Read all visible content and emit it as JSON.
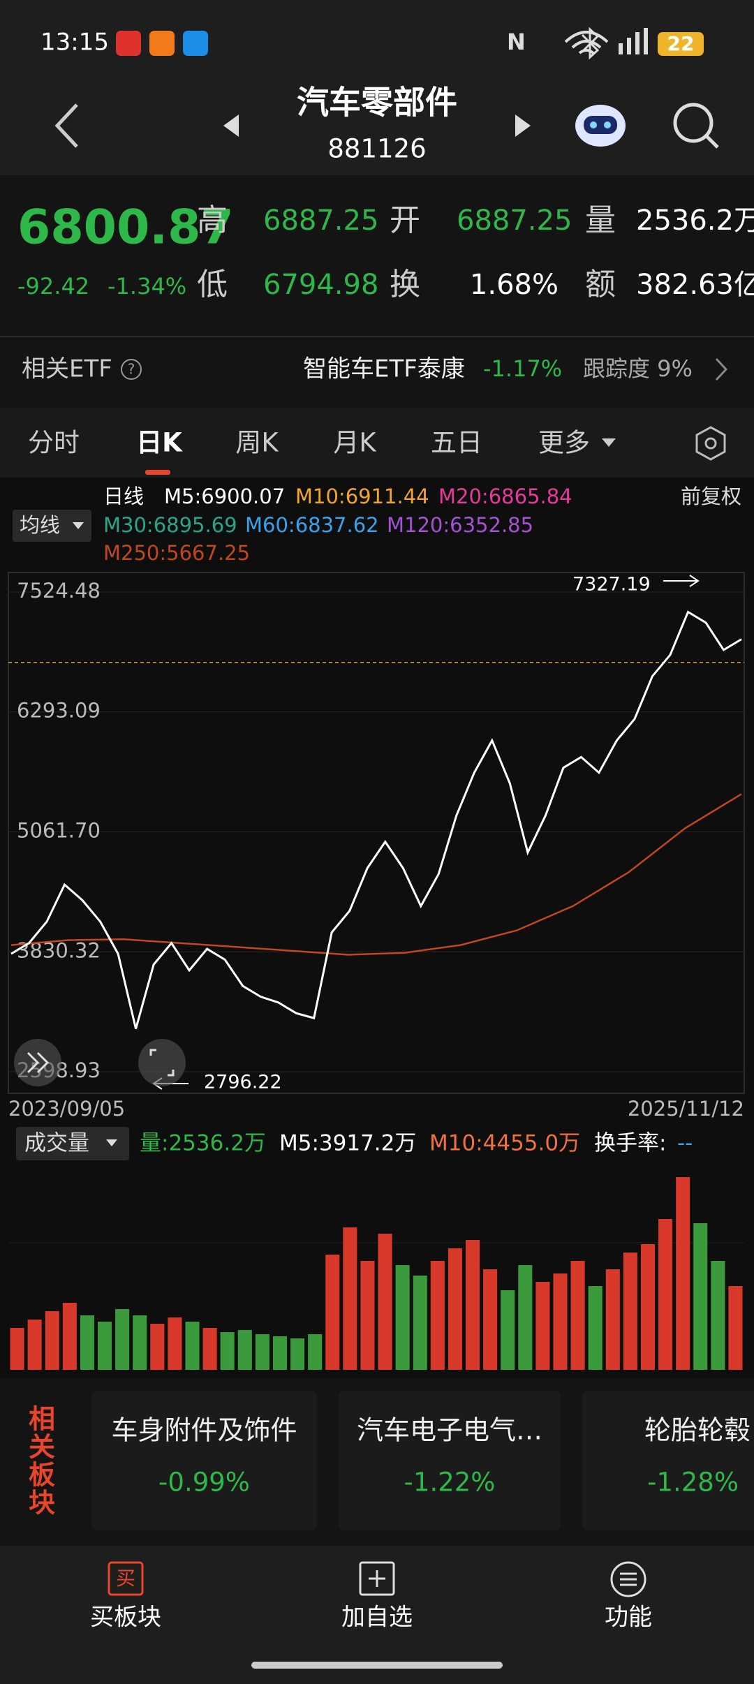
{
  "status_bar": {
    "time": "13:15",
    "battery": "22"
  },
  "header": {
    "title": "汽车零部件",
    "code": "881126"
  },
  "quote": {
    "price": "6800.87",
    "change": "-92.42",
    "change_pct": "-1.34%",
    "fields": [
      {
        "label": "高",
        "value": "6887.25"
      },
      {
        "label": "开",
        "value": "6887.25"
      },
      {
        "label": "量",
        "value": "2536.2万"
      },
      {
        "label": "低",
        "value": "6794.98"
      },
      {
        "label": "换",
        "value": "1.68%"
      },
      {
        "label": "额",
        "value": "382.63亿"
      }
    ]
  },
  "etf": {
    "label": "相关ETF",
    "name": "智能车ETF泰康",
    "change": "-1.17%",
    "tracking": "跟踪度 9%"
  },
  "tabs": [
    "分时",
    "日K",
    "周K",
    "月K",
    "五日",
    "更多"
  ],
  "kline": {
    "period": "日线",
    "adjust": "前复权",
    "ma_selector": "均线",
    "ma": [
      {
        "label": "M5:6900.07",
        "color": "#ffffff"
      },
      {
        "label": "M10:6911.44",
        "color": "#f2a52a"
      },
      {
        "label": "M20:6865.84",
        "color": "#e8389e"
      },
      {
        "label": "M30:6895.69",
        "color": "#2aa58a"
      },
      {
        "label": "M60:6837.62",
        "color": "#3ba2ea"
      },
      {
        "label": "M120:6352.85",
        "color": "#a452d4"
      },
      {
        "label": "M250:5667.25",
        "color": "#c2461e"
      }
    ],
    "ylim": [
      2377,
      7725
    ],
    "yticks": [
      7524.48,
      6293.09,
      {
        "value": 5061.7,
        "label": "5061.70"
      },
      3830.32,
      2598.93
    ],
    "max_label": 7327.19,
    "min_label": 2796.22,
    "start_date": "2023/09/05",
    "end_date": "2025/11/12",
    "close": [
      3810,
      3920,
      4140,
      4520,
      4360,
      4140,
      3810,
      3040,
      3700,
      3920,
      3640,
      3860,
      3750,
      3480,
      3370,
      3310,
      3200,
      3150,
      4030,
      4250,
      4690,
      4960,
      4690,
      4300,
      4630,
      5230,
      5670,
      6000,
      5560,
      4850,
      5230,
      5720,
      5830,
      5670,
      6000,
      6220,
      6660,
      6880,
      7320,
      7210,
      6930,
      7040
    ],
    "ma250": [
      3900,
      3950,
      3960,
      3920,
      3880,
      3840,
      3800,
      3820,
      3900,
      4050,
      4300,
      4650,
      5100,
      5450
    ]
  },
  "volume": {
    "selector": "成交量",
    "vol": "量:2536.2万",
    "m5": "M5:3917.2万",
    "m10": "M10:4455.0万",
    "turnover_label": "换手率:",
    "turnover_value": "--",
    "ylim": [
      0,
      10000
    ],
    "values": [
      2000,
      2400,
      2800,
      3200,
      2600,
      2300,
      2900,
      2600,
      2200,
      2500,
      2300,
      2000,
      1800,
      1900,
      1700,
      1600,
      1500,
      1700,
      5500,
      6800,
      5200,
      6500,
      5000,
      4500,
      5200,
      5800,
      6200,
      4800,
      3800,
      5000,
      4200,
      4600,
      5200,
      4000,
      4800,
      5600,
      6000,
      7200,
      9200,
      7000,
      5200,
      4000
    ]
  },
  "related": {
    "title": "相关板块",
    "items": [
      {
        "name": "车身附件及饰件",
        "change": "-0.99%"
      },
      {
        "name": "汽车电子电气…",
        "change": "-1.22%"
      },
      {
        "name": "轮胎轮毂",
        "change": "-1.28%"
      }
    ]
  },
  "nav": [
    {
      "icon": "买",
      "label": "买板块"
    },
    {
      "label": "加自选"
    },
    {
      "label": "功能"
    }
  ]
}
